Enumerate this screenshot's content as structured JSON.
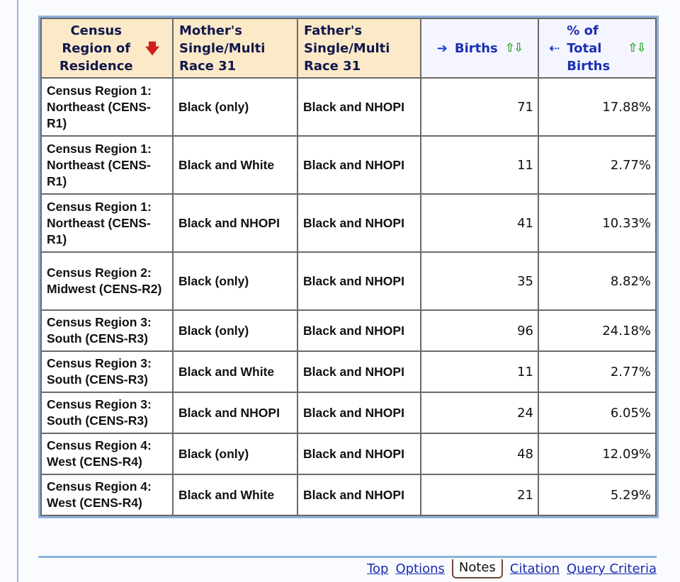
{
  "headers": {
    "region": "Census Region of Residence",
    "mother": "Mother's Single/Multi Race 31",
    "father": "Father's Single/Multi Race 31",
    "births": "Births",
    "percent": "% of Total Births"
  },
  "rows": [
    {
      "region": "Census Region 1: Northeast (CENS-R1)",
      "mother": "Black (only)",
      "father": "Black and NHOPI",
      "births": "71",
      "percent": "17.88%"
    },
    {
      "region": "Census Region 1: Northeast (CENS-R1)",
      "mother": "Black and White",
      "father": "Black and NHOPI",
      "births": "11",
      "percent": "2.77%"
    },
    {
      "region": "Census Region 1: Northeast (CENS-R1)",
      "mother": "Black and NHOPI",
      "father": "Black and NHOPI",
      "births": "41",
      "percent": "10.33%"
    },
    {
      "region": "Census Region 2: Midwest (CENS-R2)",
      "mother": "Black (only)",
      "father": "Black and NHOPI",
      "births": "35",
      "percent": "8.82%"
    },
    {
      "region": "Census Region 3: South (CENS-R3)",
      "mother": "Black (only)",
      "father": "Black and NHOPI",
      "births": "96",
      "percent": "24.18%"
    },
    {
      "region": "Census Region 3: South (CENS-R3)",
      "mother": "Black and White",
      "father": "Black and NHOPI",
      "births": "11",
      "percent": "2.77%"
    },
    {
      "region": "Census Region 3: South (CENS-R3)",
      "mother": "Black and NHOPI",
      "father": "Black and NHOPI",
      "births": "24",
      "percent": "6.05%"
    },
    {
      "region": "Census Region 4: West (CENS-R4)",
      "mother": "Black (only)",
      "father": "Black and NHOPI",
      "births": "48",
      "percent": "12.09%"
    },
    {
      "region": "Census Region 4: West (CENS-R4)",
      "mother": "Black and White",
      "father": "Black and NHOPI",
      "births": "21",
      "percent": "5.29%"
    }
  ],
  "footer": {
    "top": "Top",
    "options": "Options",
    "notes": "Notes",
    "citation": "Citation",
    "query_criteria": "Query Criteria"
  },
  "icons": {
    "sort_down": "red-down-arrow-icon",
    "pivot_right": "blue-right-arrow-icon",
    "pivot_left": "blue-left-arrow-icon",
    "sort_toggle": "green-up-down-arrows-icon"
  },
  "colors": {
    "header_bg": "#fbe9c8",
    "header_measure_bg": "#f5f5ff",
    "measure_text": "#1a2fb5",
    "sort_arrow": "#d01f1f",
    "toggle_arrows": "#2ca82c",
    "table_frame": "#8fb0dc",
    "link": "#1b2bb0"
  }
}
